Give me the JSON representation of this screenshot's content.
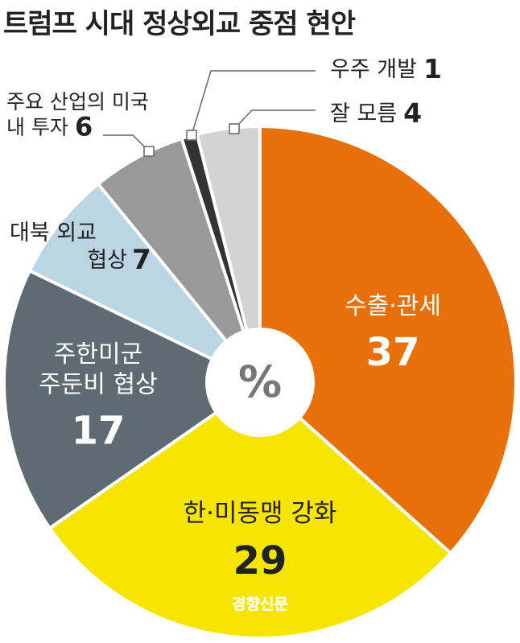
{
  "title": "트럼프 시대 정상외교 중점 현안",
  "center_label": "%",
  "credit": "경향신문",
  "chart_data": {
    "type": "pie",
    "title": "트럼프 시대 정상외교 중점 현안",
    "unit": "%",
    "slices": [
      {
        "label": "수출·관세",
        "label_lines": [
          "수출·관세"
        ],
        "value": 37,
        "value_text": "37",
        "color": "#e8700a"
      },
      {
        "label": "한·미동맹 강화",
        "label_lines": [
          "한·미동맹 강화"
        ],
        "value": 29,
        "value_text": "29",
        "color": "#f5e500"
      },
      {
        "label": "주한미군 주둔비 협상",
        "label_lines": [
          "주한미군",
          "주둔비 협상"
        ],
        "value": 17,
        "value_text": "17",
        "color": "#5e6b72"
      },
      {
        "label": "대북 외교 협상",
        "label_lines": [
          "대북 외교",
          "협상"
        ],
        "value": 7,
        "value_text": "7",
        "color": "#bcd5e4"
      },
      {
        "label": "주요 산업의 미국 내 투자",
        "label_lines": [
          "주요 산업의 미국",
          "내 투자"
        ],
        "value": 6,
        "value_text": "6",
        "color": "#999999"
      },
      {
        "label": "우주 개발",
        "label_lines": [
          "우주 개발"
        ],
        "value": 1,
        "value_text": "1",
        "color": "#333333"
      },
      {
        "label": "잘 모름",
        "label_lines": [
          "잘 모름"
        ],
        "value": 4,
        "value_text": "4",
        "color": "#d3d3d3"
      }
    ]
  }
}
